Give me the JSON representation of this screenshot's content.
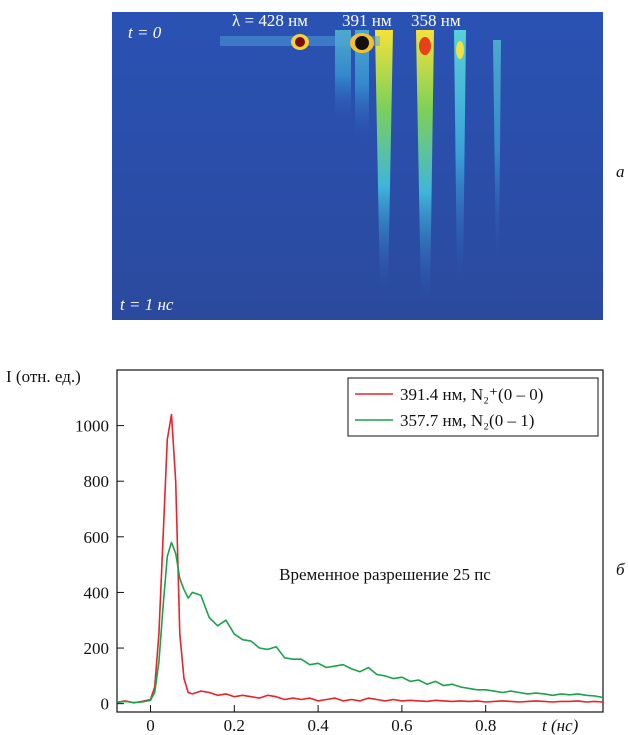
{
  "image": {
    "start_label": "t = 0",
    "end_label": "t = 1 нс",
    "wavelength_labels": [
      "λ = 428 нм",
      "391 нм",
      "358 нм"
    ],
    "panel_label": "а"
  },
  "chart_data": {
    "type": "line",
    "panel_label": "б",
    "y_label": "I (отн. ед.)",
    "x_label": "t (нс)",
    "annotation": "Временное разрешение 25 пс",
    "xlim": [
      -0.08,
      1.08
    ],
    "ylim": [
      -30,
      1200
    ],
    "xticks": [
      0,
      0.2,
      0.4,
      0.6,
      0.8
    ],
    "yticks": [
      0,
      200,
      400,
      600,
      800,
      1000
    ],
    "legend": "upper right",
    "x": [
      -0.08,
      -0.06,
      -0.04,
      -0.02,
      0,
      0.01,
      0.02,
      0.03,
      0.04,
      0.05,
      0.06,
      0.07,
      0.08,
      0.09,
      0.1,
      0.12,
      0.14,
      0.16,
      0.18,
      0.2,
      0.22,
      0.24,
      0.26,
      0.28,
      0.3,
      0.32,
      0.34,
      0.36,
      0.38,
      0.4,
      0.42,
      0.44,
      0.46,
      0.48,
      0.5,
      0.52,
      0.54,
      0.56,
      0.58,
      0.6,
      0.62,
      0.64,
      0.66,
      0.68,
      0.7,
      0.72,
      0.74,
      0.76,
      0.78,
      0.8,
      0.82,
      0.84,
      0.86,
      0.88,
      0.9,
      0.92,
      0.94,
      0.96,
      0.98,
      1.0,
      1.02,
      1.04,
      1.06,
      1.08
    ],
    "series": [
      {
        "name": "391.4 нм, N₂⁺(0 – 0)",
        "color": "#e8232a",
        "values": [
          5,
          10,
          3,
          8,
          15,
          60,
          250,
          600,
          950,
          1040,
          800,
          250,
          90,
          40,
          35,
          45,
          40,
          30,
          35,
          25,
          30,
          25,
          20,
          30,
          25,
          15,
          20,
          15,
          20,
          10,
          15,
          20,
          10,
          15,
          10,
          20,
          15,
          10,
          15,
          10,
          12,
          10,
          8,
          12,
          10,
          8,
          10,
          8,
          10,
          6,
          8,
          10,
          8,
          6,
          8,
          10,
          8,
          6,
          8,
          8,
          10,
          6,
          8,
          6
        ]
      },
      {
        "name": "357.7 нм, N₂(0 – 1)",
        "color": "#1aa34a",
        "values": [
          5,
          8,
          4,
          6,
          12,
          40,
          150,
          350,
          530,
          580,
          540,
          450,
          410,
          380,
          400,
          390,
          310,
          280,
          300,
          250,
          230,
          225,
          200,
          195,
          205,
          165,
          160,
          160,
          140,
          145,
          130,
          135,
          140,
          125,
          115,
          130,
          105,
          100,
          90,
          95,
          80,
          85,
          70,
          80,
          65,
          70,
          60,
          55,
          50,
          50,
          45,
          40,
          45,
          40,
          35,
          38,
          35,
          30,
          35,
          32,
          35,
          30,
          28,
          22
        ]
      }
    ]
  }
}
